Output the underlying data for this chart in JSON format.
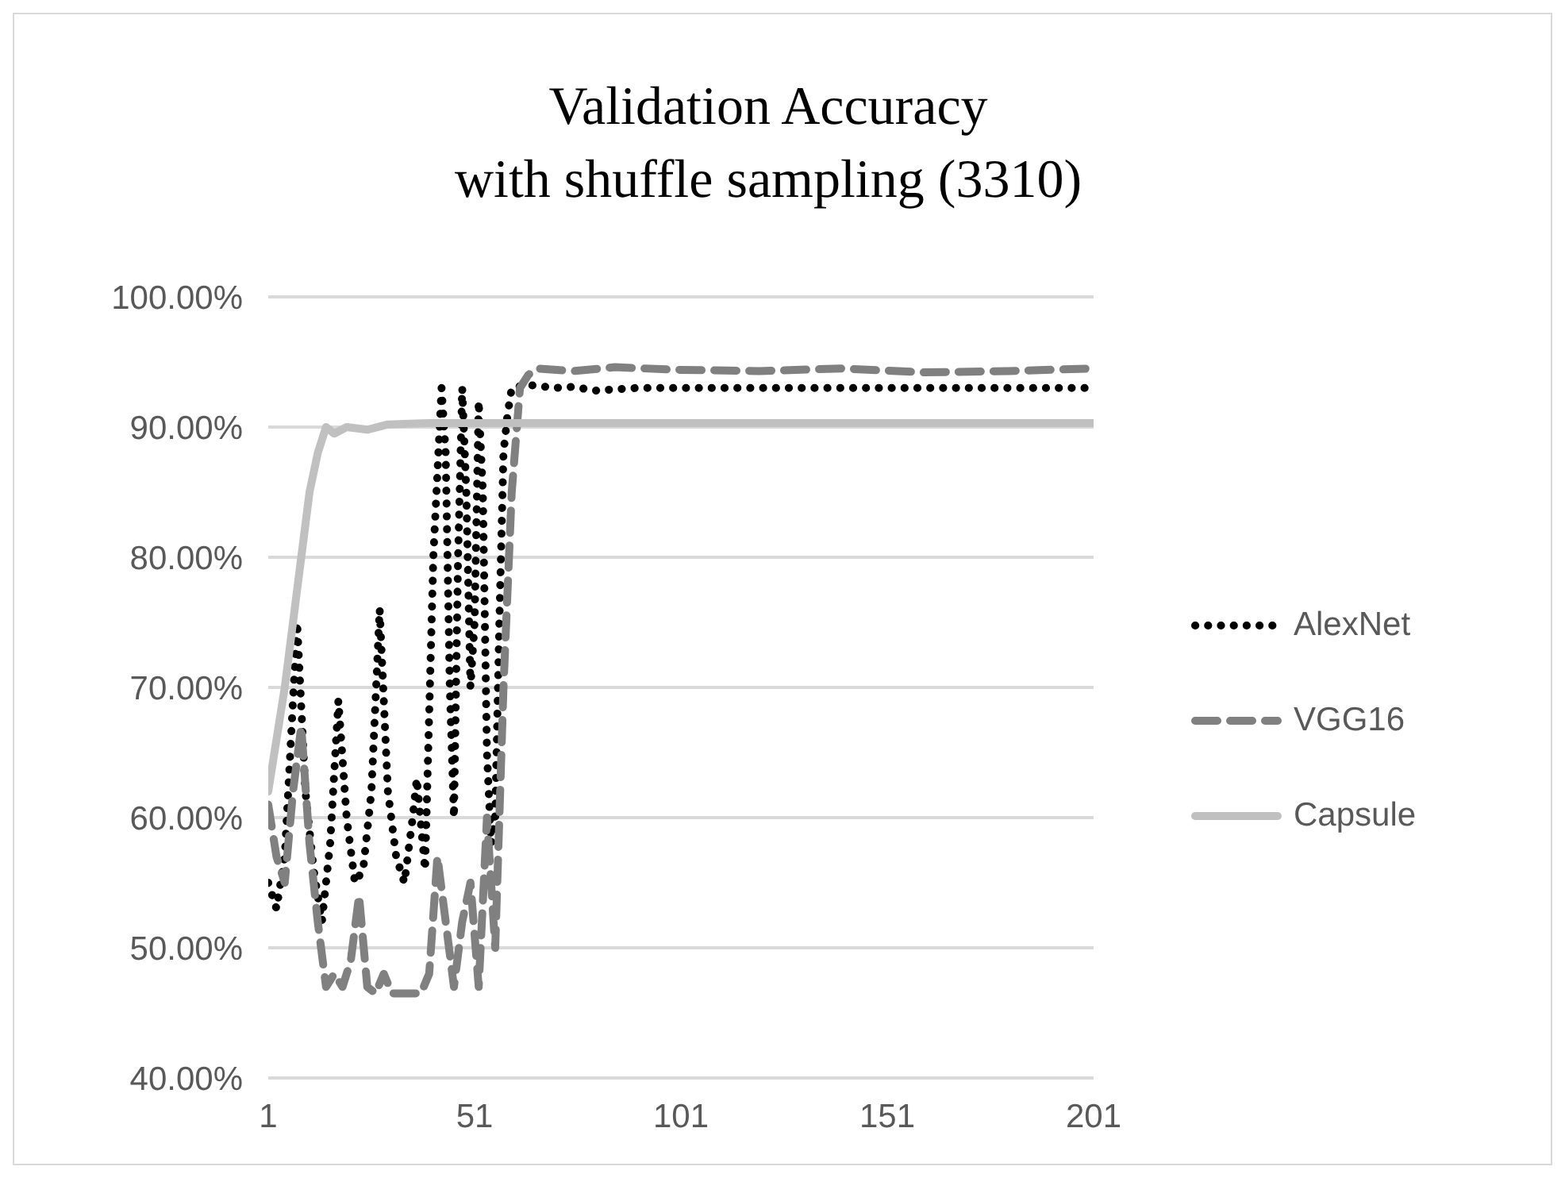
{
  "chart_data": {
    "type": "line",
    "title": "Validation Accuracy\nwith shuffle sampling (3310)",
    "xlim": [
      1,
      201
    ],
    "xticks": [
      1,
      51,
      101,
      151,
      201
    ],
    "ylim": [
      40,
      100
    ],
    "yticks": [
      {
        "value": 40,
        "label": "40.00%"
      },
      {
        "value": 50,
        "label": "50.00%"
      },
      {
        "value": 60,
        "label": "60.00%"
      },
      {
        "value": 70,
        "label": "70.00%"
      },
      {
        "value": 80,
        "label": "80.00%"
      },
      {
        "value": 90,
        "label": "90.00%"
      },
      {
        "value": 100,
        "label": "100.00%"
      }
    ],
    "grid": "y",
    "legend": "right",
    "marker": "none",
    "series": [
      {
        "name": "AlexNet",
        "color": "#000000",
        "line_style": "dotted",
        "x": [
          1,
          3,
          5,
          8,
          10,
          12,
          14,
          16,
          18,
          20,
          22,
          24,
          26,
          28,
          30,
          32,
          34,
          36,
          37,
          39,
          41,
          43,
          44,
          45,
          46,
          47,
          48,
          49,
          50,
          51,
          52,
          53,
          54,
          55,
          56,
          57,
          58,
          59,
          60,
          63,
          66,
          70,
          75,
          80,
          90,
          100,
          120,
          140,
          160,
          180,
          201
        ],
        "values": [
          55,
          53,
          57,
          75,
          62,
          56,
          52,
          58,
          69,
          60,
          55,
          56,
          62,
          76,
          62,
          57,
          55,
          60,
          63,
          56,
          80,
          93,
          88,
          70,
          60,
          80,
          93,
          85,
          70,
          75,
          92,
          85,
          65,
          58,
          60,
          75,
          88,
          91,
          93,
          93.2,
          93.2,
          93,
          93.1,
          92.8,
          93,
          93,
          93,
          93,
          93,
          93,
          93
        ]
      },
      {
        "name": "VGG16",
        "color": "#808080",
        "line_style": "dashed",
        "x": [
          1,
          3,
          5,
          7,
          9,
          11,
          13,
          15,
          17,
          19,
          21,
          23,
          25,
          27,
          29,
          31,
          35,
          38,
          40,
          42,
          44,
          46,
          48,
          50,
          52,
          54,
          56,
          58,
          60,
          62,
          64,
          66,
          75,
          85,
          100,
          120,
          140,
          160,
          180,
          201
        ],
        "values": [
          61,
          57,
          55,
          62,
          67,
          58,
          52,
          47,
          48,
          47,
          49,
          54,
          47,
          46.5,
          48,
          46.5,
          46.5,
          46.5,
          48,
          57,
          52,
          47,
          52,
          55,
          47,
          60,
          50,
          70,
          85,
          93,
          94,
          94.5,
          94.3,
          94.6,
          94.4,
          94.3,
          94.5,
          94.2,
          94.3,
          94.5
        ]
      },
      {
        "name": "Capsule",
        "color": "#c0c0c0",
        "line_style": "solid",
        "x": [
          1,
          3,
          5,
          7,
          9,
          11,
          13,
          15,
          17,
          20,
          25,
          30,
          40,
          60,
          100,
          150,
          201
        ],
        "values": [
          62,
          66,
          70,
          75,
          80,
          85,
          88,
          90,
          89.5,
          90,
          89.8,
          90.2,
          90.3,
          90.3,
          90.3,
          90.3,
          90.3
        ]
      }
    ]
  }
}
